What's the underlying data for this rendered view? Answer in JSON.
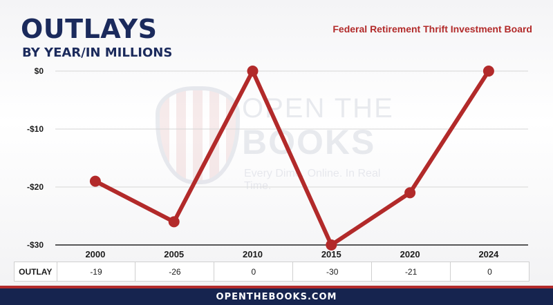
{
  "header": {
    "title": "OUTLAYS",
    "subtitle": "BY YEAR/IN MILLIONS",
    "agency": "Federal Retirement Thrift Investment Board"
  },
  "watermark": {
    "line1": "OPEN THE",
    "line2": "BOOKS",
    "tagline": "Every Dime. Online. In Real Time."
  },
  "chart_data": {
    "type": "line",
    "categories": [
      "2000",
      "2005",
      "2010",
      "2015",
      "2020",
      "2024"
    ],
    "series": [
      {
        "values": [
          -19,
          -26,
          0,
          -30,
          -21,
          0
        ]
      }
    ],
    "yticks": [
      "$0",
      "-$10",
      "-$20",
      "-$30"
    ],
    "ylim": [
      -30,
      0
    ],
    "grid": true,
    "line_color": "#b22a2a",
    "table": {
      "row_label": "OUTLAY",
      "values": [
        "-19",
        "-26",
        "0",
        "-30",
        "-21",
        "0"
      ]
    }
  },
  "footer": {
    "site": "OPENTHEBOOKS.COM"
  },
  "colors": {
    "navy": "#1b2a5c",
    "red": "#b22a2a"
  }
}
